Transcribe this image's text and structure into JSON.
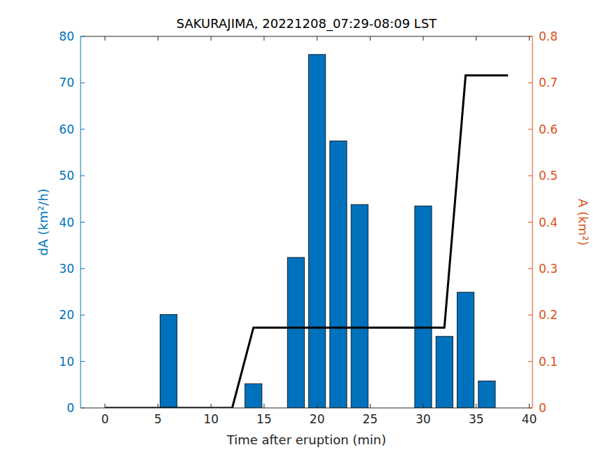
{
  "chart_data": {
    "type": "bar",
    "title": "SAKURAJIMA, 20221208_07:29-08:09 LST",
    "x_label": "Time after eruption (min)",
    "y_label": "dA (km²/h)",
    "y2_label": "A (km²)",
    "xlim": [
      -2.3,
      40.3
    ],
    "xticks": [
      0,
      5,
      10,
      15,
      20,
      25,
      30,
      35,
      40
    ],
    "ylim": [
      0,
      80
    ],
    "yticks": [
      0,
      10,
      20,
      30,
      40,
      50,
      60,
      70,
      80
    ],
    "y2lim": [
      0,
      0.8
    ],
    "y2ticks": [
      0,
      0.1,
      0.2,
      0.3,
      0.4,
      0.5,
      0.6,
      0.7,
      0.8
    ],
    "grid": false,
    "series": [
      {
        "type": "bar",
        "color": "#0072bd",
        "x": [
          6,
          14,
          18,
          20,
          22,
          24,
          30,
          32,
          34,
          36
        ],
        "values": [
          20.1,
          5.2,
          32.4,
          76.1,
          57.5,
          43.8,
          43.5,
          15.4,
          24.9,
          5.8
        ]
      },
      {
        "type": "line",
        "color": "#000000",
        "axis": "y2",
        "x": [
          0,
          12,
          14,
          32,
          34,
          38
        ],
        "values": [
          0,
          0,
          0.173,
          0.173,
          0.716,
          0.716
        ]
      }
    ]
  }
}
